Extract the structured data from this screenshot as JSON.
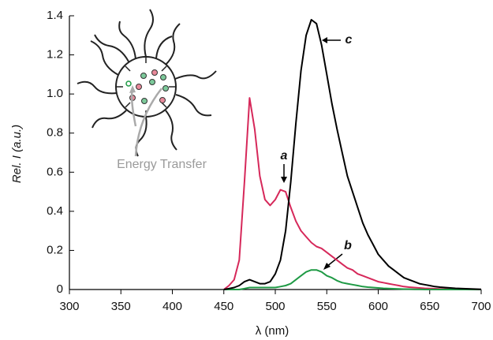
{
  "chart_data": {
    "type": "line",
    "x_label": "λ (nm)",
    "y_label": "Rel. I (a.u.)",
    "xlim": [
      300,
      700
    ],
    "xticks": [
      300,
      350,
      400,
      450,
      500,
      550,
      600,
      650,
      700
    ],
    "ylim": [
      0,
      1.4
    ],
    "yticks": [
      0,
      0.2,
      0.4,
      0.6,
      0.8,
      {
        "value": 1,
        "label": "1.0"
      },
      1.2,
      1.4
    ],
    "x": [
      450,
      455,
      460,
      465,
      470,
      475,
      480,
      485,
      490,
      495,
      500,
      505,
      510,
      515,
      520,
      525,
      530,
      535,
      540,
      545,
      550,
      555,
      560,
      565,
      570,
      575,
      580,
      585,
      590,
      595,
      600,
      605,
      610,
      615,
      620,
      625,
      630,
      635,
      640,
      645,
      650,
      655,
      660,
      665,
      670,
      675,
      680,
      685,
      690,
      695,
      700
    ],
    "series": [
      {
        "name": "a",
        "color": "#d6285a",
        "values": [
          0,
          0.02,
          0.05,
          0.15,
          0.55,
          0.98,
          0.82,
          0.58,
          0.46,
          0.43,
          0.46,
          0.51,
          0.5,
          0.42,
          0.35,
          0.3,
          0.27,
          0.24,
          0.22,
          0.21,
          0.19,
          0.17,
          0.15,
          0.13,
          0.11,
          0.1,
          0.08,
          0.07,
          0.06,
          0.05,
          0.04,
          0.035,
          0.03,
          0.025,
          0.02,
          0.015,
          0.012,
          0.01,
          0.008,
          0.006,
          0.005,
          0.004,
          0.003,
          0.002,
          0.002,
          0.001,
          0.001,
          0,
          0,
          0,
          0
        ]
      },
      {
        "name": "b",
        "color": "#1f9a45",
        "values": [
          0,
          0,
          0,
          0,
          0.005,
          0.01,
          0.01,
          0.01,
          0.01,
          0.01,
          0.01,
          0.015,
          0.02,
          0.03,
          0.05,
          0.07,
          0.09,
          0.1,
          0.1,
          0.09,
          0.07,
          0.06,
          0.045,
          0.035,
          0.03,
          0.025,
          0.02,
          0.015,
          0.012,
          0.01,
          0.008,
          0.006,
          0.005,
          0.004,
          0.003,
          0.002,
          0.002,
          0.001,
          0.001,
          0,
          0,
          0,
          0,
          0,
          0,
          0,
          0,
          0,
          0,
          0,
          0
        ]
      },
      {
        "name": "c",
        "color": "#000000",
        "values": [
          0,
          0.005,
          0.01,
          0.02,
          0.04,
          0.05,
          0.04,
          0.03,
          0.03,
          0.04,
          0.08,
          0.15,
          0.3,
          0.55,
          0.85,
          1.12,
          1.3,
          1.38,
          1.36,
          1.25,
          1.1,
          0.95,
          0.82,
          0.7,
          0.58,
          0.5,
          0.42,
          0.34,
          0.28,
          0.23,
          0.18,
          0.15,
          0.12,
          0.1,
          0.08,
          0.06,
          0.05,
          0.04,
          0.03,
          0.025,
          0.02,
          0.015,
          0.012,
          0.01,
          0.008,
          0.006,
          0.005,
          0.004,
          0.003,
          0.002,
          0.001
        ]
      }
    ],
    "annotation": "Energy Transfer"
  }
}
